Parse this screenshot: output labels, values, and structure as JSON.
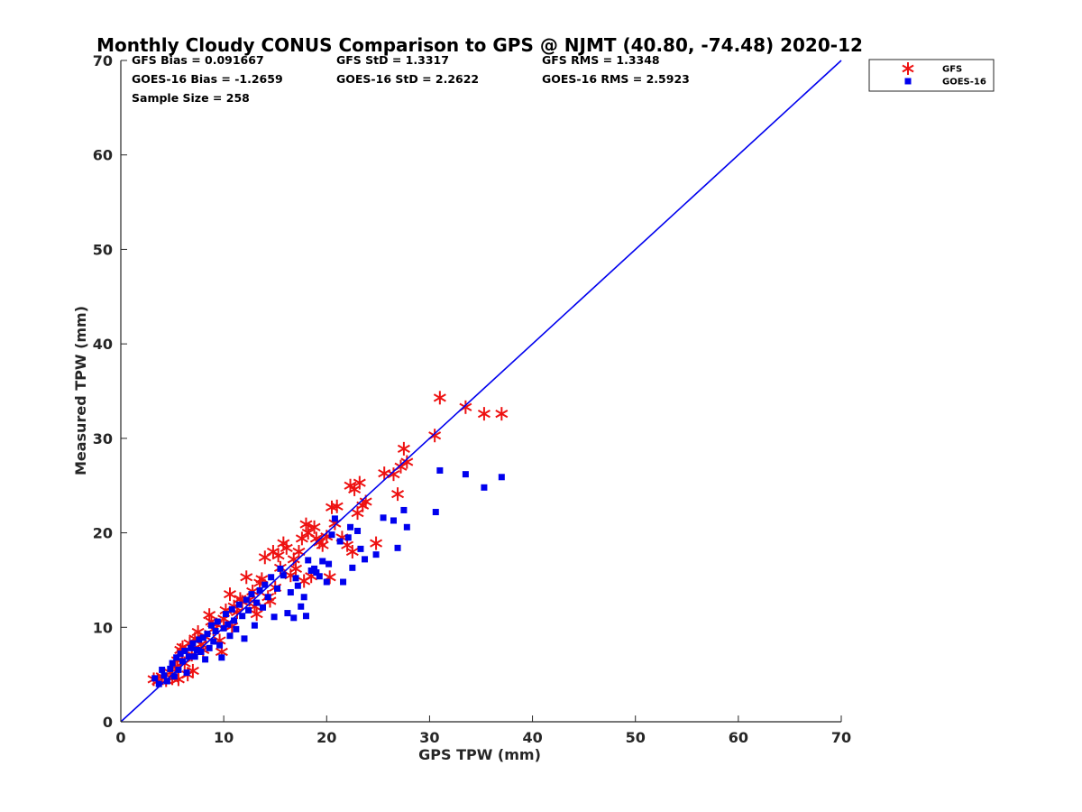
{
  "chart_data": {
    "type": "scatter",
    "title": "Monthly Cloudy CONUS Comparison to GPS @ NJMT (40.80, -74.48) 2020-12",
    "xlabel": "GPS TPW (mm)",
    "ylabel": "Measured TPW (mm)",
    "xlim": [
      0,
      70
    ],
    "ylim": [
      0,
      70
    ],
    "xticks": [
      0,
      10,
      20,
      30,
      40,
      50,
      60,
      70
    ],
    "yticks": [
      0,
      10,
      20,
      30,
      40,
      50,
      60,
      70
    ],
    "grid": false,
    "legend_position": "top-right outside",
    "stats": [
      [
        "GFS Bias = 0.091667",
        "GFS StD = 1.3317",
        "GFS RMS = 1.3348"
      ],
      [
        "GOES-16 Bias = -1.2659",
        "GOES-16 StD = 2.2622",
        "GOES-16 RMS = 2.5923"
      ],
      [
        "Sample Size = 258",
        "",
        ""
      ]
    ],
    "reference_line": {
      "x": [
        0,
        70
      ],
      "y": [
        0,
        70
      ],
      "color": "#0000ee"
    },
    "series": [
      {
        "name": "GFS",
        "marker": "asterisk",
        "color": "#ee1111",
        "points": [
          [
            3.2,
            4.5
          ],
          [
            3.6,
            4.3
          ],
          [
            4.0,
            4.8
          ],
          [
            4.4,
            4.4
          ],
          [
            4.8,
            5.2
          ],
          [
            5.0,
            4.6
          ],
          [
            5.3,
            5.8
          ],
          [
            5.5,
            6.5
          ],
          [
            5.6,
            4.5
          ],
          [
            5.8,
            7.6
          ],
          [
            6.0,
            7.9
          ],
          [
            6.2,
            6.2
          ],
          [
            6.5,
            5.0
          ],
          [
            6.7,
            8.3
          ],
          [
            6.9,
            7.1
          ],
          [
            7.0,
            5.4
          ],
          [
            7.2,
            8.8
          ],
          [
            7.5,
            9.5
          ],
          [
            7.8,
            8.2
          ],
          [
            8.0,
            7.6
          ],
          [
            8.2,
            9.0
          ],
          [
            8.6,
            11.3
          ],
          [
            8.8,
            10.6
          ],
          [
            9.0,
            9.8
          ],
          [
            9.3,
            10.3
          ],
          [
            9.6,
            8.6
          ],
          [
            9.8,
            7.4
          ],
          [
            10.0,
            10.9
          ],
          [
            10.2,
            11.8
          ],
          [
            10.6,
            13.5
          ],
          [
            10.8,
            10.1
          ],
          [
            11.0,
            12.2
          ],
          [
            11.3,
            11.6
          ],
          [
            11.6,
            13.0
          ],
          [
            11.8,
            12.7
          ],
          [
            12.2,
            15.3
          ],
          [
            12.5,
            12.9
          ],
          [
            12.8,
            13.8
          ],
          [
            13.0,
            12.2
          ],
          [
            13.2,
            11.4
          ],
          [
            13.5,
            14.7
          ],
          [
            13.7,
            15.1
          ],
          [
            14.0,
            17.4
          ],
          [
            14.3,
            13.2
          ],
          [
            14.5,
            12.8
          ],
          [
            14.8,
            18.0
          ],
          [
            15.0,
            14.2
          ],
          [
            15.3,
            17.6
          ],
          [
            15.5,
            16.3
          ],
          [
            15.8,
            18.9
          ],
          [
            16.1,
            18.4
          ],
          [
            16.5,
            15.5
          ],
          [
            16.8,
            17.2
          ],
          [
            17.0,
            16.2
          ],
          [
            17.3,
            18.0
          ],
          [
            17.6,
            19.4
          ],
          [
            17.8,
            14.9
          ],
          [
            18.0,
            20.9
          ],
          [
            18.2,
            20.0
          ],
          [
            18.5,
            15.4
          ],
          [
            18.8,
            20.6
          ],
          [
            19.0,
            19.4
          ],
          [
            19.3,
            19.0
          ],
          [
            19.6,
            18.7
          ],
          [
            20.0,
            19.6
          ],
          [
            20.3,
            15.3
          ],
          [
            20.5,
            22.7
          ],
          [
            20.8,
            21.0
          ],
          [
            21.0,
            22.8
          ],
          [
            21.5,
            19.5
          ],
          [
            22.0,
            18.7
          ],
          [
            22.3,
            25.0
          ],
          [
            22.5,
            18.0
          ],
          [
            22.7,
            24.6
          ],
          [
            23.0,
            22.1
          ],
          [
            23.2,
            25.3
          ],
          [
            23.5,
            22.9
          ],
          [
            23.8,
            23.3
          ],
          [
            24.8,
            18.9
          ],
          [
            25.6,
            26.3
          ],
          [
            26.5,
            26.2
          ],
          [
            26.9,
            24.1
          ],
          [
            27.2,
            27.0
          ],
          [
            27.5,
            28.9
          ],
          [
            27.8,
            27.5
          ],
          [
            30.5,
            30.3
          ],
          [
            31.0,
            34.3
          ],
          [
            33.5,
            33.3
          ],
          [
            35.3,
            32.6
          ],
          [
            37.0,
            32.6
          ]
        ]
      },
      {
        "name": "GOES-16",
        "marker": "square",
        "color": "#0000ee",
        "points": [
          [
            3.3,
            4.6
          ],
          [
            3.7,
            4.0
          ],
          [
            4.0,
            5.5
          ],
          [
            4.2,
            4.9
          ],
          [
            4.5,
            4.3
          ],
          [
            4.8,
            5.6
          ],
          [
            5.0,
            6.2
          ],
          [
            5.2,
            4.8
          ],
          [
            5.4,
            6.8
          ],
          [
            5.6,
            5.5
          ],
          [
            5.8,
            7.2
          ],
          [
            6.0,
            6.4
          ],
          [
            6.2,
            7.5
          ],
          [
            6.4,
            5.2
          ],
          [
            6.6,
            6.9
          ],
          [
            6.8,
            7.8
          ],
          [
            7.0,
            8.3
          ],
          [
            7.2,
            6.9
          ],
          [
            7.4,
            7.6
          ],
          [
            7.6,
            8.7
          ],
          [
            7.8,
            7.4
          ],
          [
            8.0,
            8.9
          ],
          [
            8.2,
            6.6
          ],
          [
            8.4,
            9.3
          ],
          [
            8.6,
            7.8
          ],
          [
            8.8,
            10.2
          ],
          [
            9.0,
            8.5
          ],
          [
            9.2,
            9.6
          ],
          [
            9.4,
            10.6
          ],
          [
            9.6,
            8.1
          ],
          [
            9.8,
            6.8
          ],
          [
            10.0,
            9.9
          ],
          [
            10.2,
            11.4
          ],
          [
            10.4,
            10.3
          ],
          [
            10.6,
            9.1
          ],
          [
            10.8,
            11.9
          ],
          [
            11.0,
            10.7
          ],
          [
            11.2,
            9.8
          ],
          [
            11.5,
            12.4
          ],
          [
            11.8,
            11.2
          ],
          [
            12.0,
            8.8
          ],
          [
            12.2,
            12.9
          ],
          [
            12.4,
            11.8
          ],
          [
            12.7,
            13.5
          ],
          [
            13.0,
            10.2
          ],
          [
            13.2,
            12.6
          ],
          [
            13.5,
            13.9
          ],
          [
            13.8,
            12.1
          ],
          [
            14.0,
            14.5
          ],
          [
            14.3,
            13.2
          ],
          [
            14.6,
            15.3
          ],
          [
            14.9,
            11.1
          ],
          [
            15.2,
            14.1
          ],
          [
            15.5,
            16.2
          ],
          [
            15.8,
            15.5
          ],
          [
            16.2,
            11.5
          ],
          [
            16.5,
            13.7
          ],
          [
            16.8,
            11.0
          ],
          [
            17.0,
            15.2
          ],
          [
            17.2,
            14.4
          ],
          [
            17.5,
            12.2
          ],
          [
            17.8,
            13.2
          ],
          [
            18.0,
            11.2
          ],
          [
            18.2,
            17.1
          ],
          [
            18.5,
            16.0
          ],
          [
            18.8,
            16.2
          ],
          [
            19.0,
            15.8
          ],
          [
            19.3,
            15.4
          ],
          [
            19.6,
            17.0
          ],
          [
            20.0,
            14.8
          ],
          [
            20.2,
            16.7
          ],
          [
            20.5,
            19.8
          ],
          [
            20.8,
            21.5
          ],
          [
            21.3,
            19.1
          ],
          [
            21.6,
            14.8
          ],
          [
            22.1,
            19.5
          ],
          [
            22.3,
            20.6
          ],
          [
            22.5,
            16.3
          ],
          [
            23.0,
            20.2
          ],
          [
            23.3,
            18.3
          ],
          [
            23.7,
            17.2
          ],
          [
            24.8,
            17.7
          ],
          [
            25.5,
            21.6
          ],
          [
            26.5,
            21.3
          ],
          [
            26.9,
            18.4
          ],
          [
            27.5,
            22.4
          ],
          [
            27.8,
            20.6
          ],
          [
            30.6,
            22.2
          ],
          [
            31.0,
            26.6
          ],
          [
            33.5,
            26.2
          ],
          [
            35.3,
            24.8
          ],
          [
            37.0,
            25.9
          ]
        ]
      }
    ]
  }
}
